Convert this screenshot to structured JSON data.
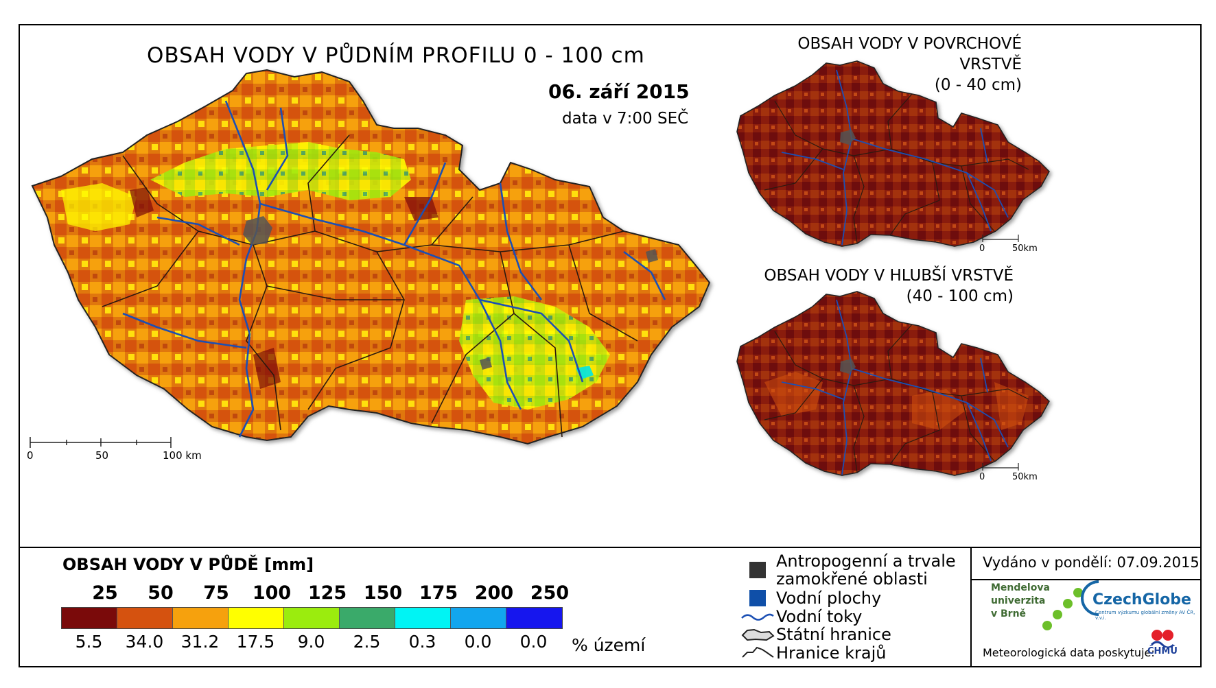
{
  "main_map": {
    "title": "OBSAH VODY V PŮDNÍM PROFILU 0 - 100 cm",
    "date": "06. září 2015",
    "data_time": "data v 7:00 SEČ",
    "scale_labels": [
      "0",
      "50",
      "100 km"
    ]
  },
  "inset_surface": {
    "title_line1": "OBSAH VODY V POVRCHOVÉ VRSTVĚ",
    "title_line2": "(0 - 40 cm)",
    "scale_labels": [
      "0",
      "50km"
    ]
  },
  "inset_deep": {
    "title_line1": "OBSAH VODY V HLUBŠÍ VRSTVĚ",
    "title_line2": "(40 - 100 cm)",
    "scale_labels": [
      "0",
      "50km"
    ]
  },
  "legend": {
    "title": "OBSAH VODY V PŮDĚ [mm]",
    "class_bounds": [
      "25",
      "50",
      "75",
      "100",
      "125",
      "150",
      "175",
      "200",
      "250"
    ],
    "class_colors": [
      "#7a0a0a",
      "#d5520f",
      "#f6a10d",
      "#ffff00",
      "#9bec0e",
      "#3aaa6a",
      "#00f4f4",
      "#12a6ee",
      "#1616ee"
    ],
    "percent_of_area": [
      "5.5",
      "34.0",
      "31.2",
      "17.5",
      "9.0",
      "2.5",
      "0.3",
      "0.0",
      "0.0"
    ],
    "percent_unit": "% území",
    "symbols": {
      "anthropogenic_line1": "Antropogenní a trvale",
      "anthropogenic_line2": "zamokřené oblasti",
      "water_bodies": "Vodní plochy",
      "rivers": "Vodní toky",
      "state_border": "Státní hranice",
      "region_border": "Hranice krajů"
    },
    "symbol_colors": {
      "anthropogenic": "#333333",
      "water_bodies": "#0f4fa8",
      "rivers": "#1b4fb4"
    }
  },
  "footer": {
    "issued": "Vydáno v pondělí: 07.09.2015",
    "mendel_line1": "Mendelova",
    "mendel_line2": "univerzita",
    "mendel_line3": "v Brně",
    "czechglobe": "CzechGlobe",
    "czechglobe_sub": "Centrum výzkumu globální změny AV ČR, v.v.i.",
    "provider": "Meteorologická data poskytuje:",
    "chmu": "ČHMÚ"
  }
}
